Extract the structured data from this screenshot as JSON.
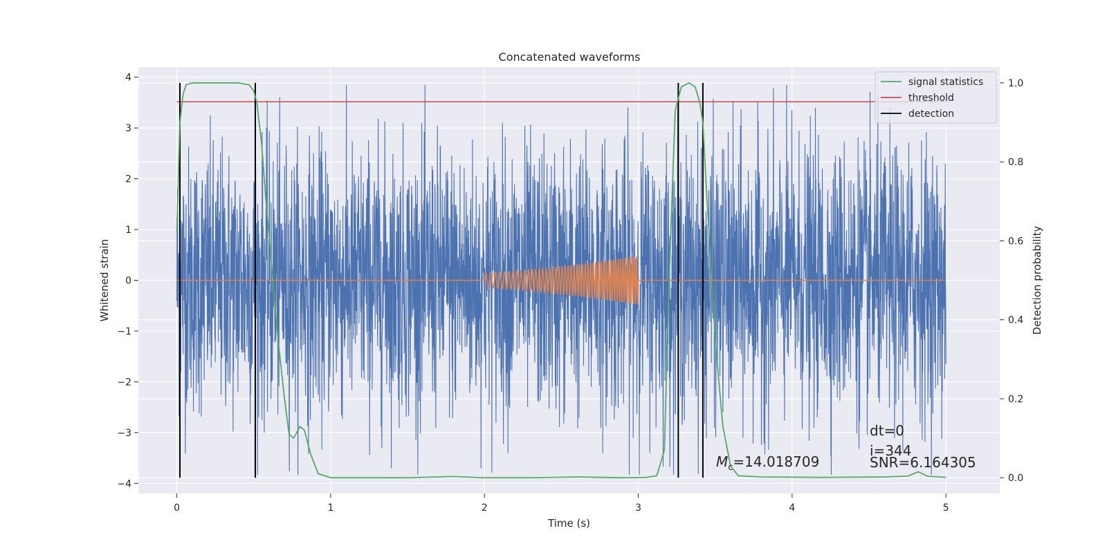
{
  "chart_data": {
    "type": "line",
    "title": "Concatenated waveforms",
    "xlabel": "Time (s)",
    "ylabel_left": "Whitened strain",
    "ylabel_right": "Detection probability",
    "xlim": [
      -0.25,
      5.35
    ],
    "ylim_left": [
      -4.2,
      4.2
    ],
    "ylim_right": [
      -0.04,
      1.04
    ],
    "xticks": [
      0,
      1,
      2,
      3,
      4,
      5
    ],
    "yticks_left": [
      -4,
      -3,
      -2,
      -1,
      0,
      1,
      2,
      3,
      4
    ],
    "yticks_right": [
      "0.0",
      "0.2",
      "0.4",
      "0.6",
      "0.8",
      "1.0"
    ],
    "grid": true,
    "legend_position": "top-right",
    "colors": {
      "strain": "#4c72b0",
      "template": "#dd8452",
      "signal_statistics": "#55a868",
      "threshold": "#c44e52",
      "detection": "#000000",
      "background": "#eaeaf2",
      "grid": "#ffffff"
    },
    "series": [
      {
        "name": "signal statistics",
        "axis": "right",
        "x": [
          0.0,
          0.02,
          0.04,
          0.06,
          0.1,
          0.2,
          0.3,
          0.4,
          0.47,
          0.5,
          0.52,
          0.55,
          0.58,
          0.62,
          0.65,
          0.7,
          0.73,
          0.76,
          0.8,
          0.83,
          0.87,
          0.92,
          1.0,
          1.2,
          1.5,
          1.8,
          2.0,
          2.3,
          2.6,
          2.9,
          3.05,
          3.12,
          3.17,
          3.2,
          3.24,
          3.28,
          3.33,
          3.37,
          3.4,
          3.42,
          3.44,
          3.47,
          3.5,
          3.55,
          3.6,
          3.65,
          3.8,
          4.2,
          4.6,
          4.75,
          4.82,
          4.88,
          5.0
        ],
        "y": [
          0.62,
          0.9,
          0.97,
          0.995,
          1.0,
          1.0,
          1.0,
          1.0,
          0.995,
          0.98,
          0.95,
          0.85,
          0.7,
          0.52,
          0.38,
          0.2,
          0.11,
          0.1,
          0.13,
          0.12,
          0.06,
          0.01,
          0.0,
          0.0,
          0.0,
          0.003,
          0.0,
          0.0,
          0.002,
          0.0,
          0.001,
          0.005,
          0.07,
          0.5,
          0.93,
          0.99,
          1.0,
          0.99,
          0.95,
          0.9,
          0.75,
          0.55,
          0.35,
          0.13,
          0.03,
          0.005,
          0.002,
          0.001,
          0.002,
          0.004,
          0.015,
          0.004,
          0.001
        ]
      },
      {
        "name": "threshold",
        "axis": "right",
        "x": [
          0.0,
          5.0
        ],
        "y": [
          0.952,
          0.952
        ]
      }
    ],
    "strain": {
      "axis": "left",
      "x_range": [
        0.0,
        5.0
      ],
      "typical_amplitude": 1.3,
      "max": 3.85,
      "min": -3.83
    },
    "template": {
      "axis": "left",
      "chirp_start": 2.0,
      "chirp_end": 3.0,
      "amplitude_start": 0.15,
      "amplitude_end": 0.48
    },
    "detections": [
      0.02,
      0.51,
      3.26,
      3.42
    ],
    "annotations": {
      "mc_symbol": "M",
      "mc_subscript": "c",
      "mc_value": "=14.018709",
      "dt": "dt=0",
      "i": "i=344",
      "snr": "SNR=6.164305"
    },
    "legend": [
      {
        "label": "signal statistics",
        "color": "#55a868"
      },
      {
        "label": "threshold",
        "color": "#c44e52"
      },
      {
        "label": "detection",
        "color": "#000000"
      }
    ]
  }
}
